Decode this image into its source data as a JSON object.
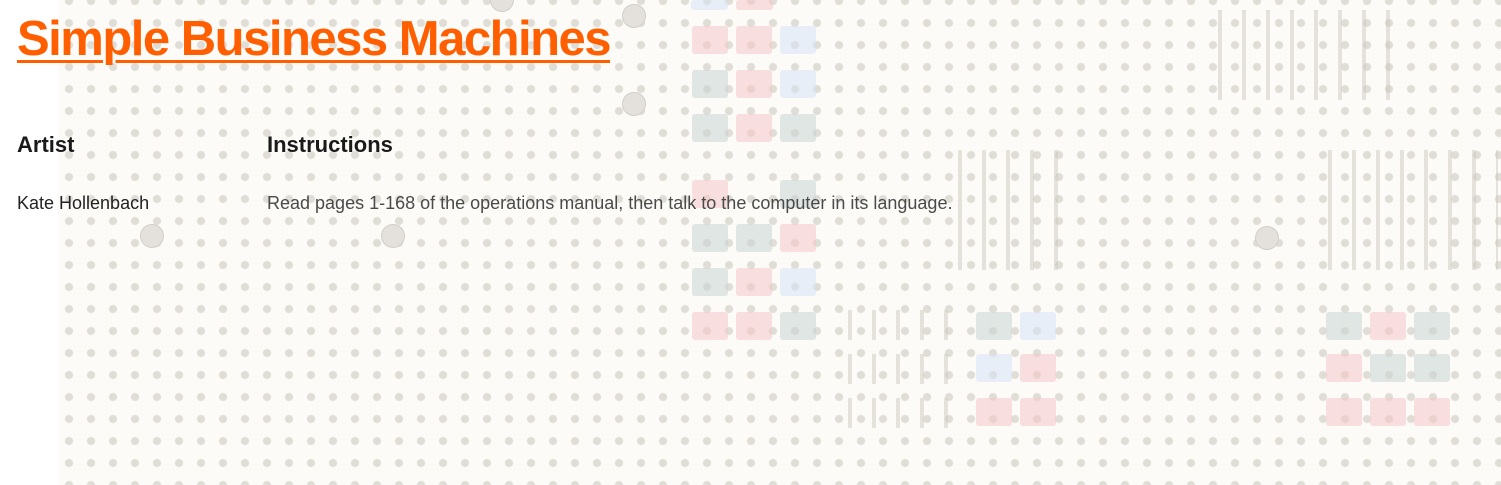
{
  "site": {
    "title": "Simple Business Machines"
  },
  "table": {
    "headers": {
      "artist": "Artist",
      "instructions": "Instructions"
    },
    "rows": [
      {
        "artist": "Kate Hollenbach",
        "instructions": "Read pages 1-168 of the operations manual, then talk to the computer in its language."
      }
    ]
  },
  "colors": {
    "accent": "#ff5f00",
    "text": "#1a1a1a",
    "muted_text": "#4a4a4a",
    "backdrop": "#fcfbf8"
  }
}
